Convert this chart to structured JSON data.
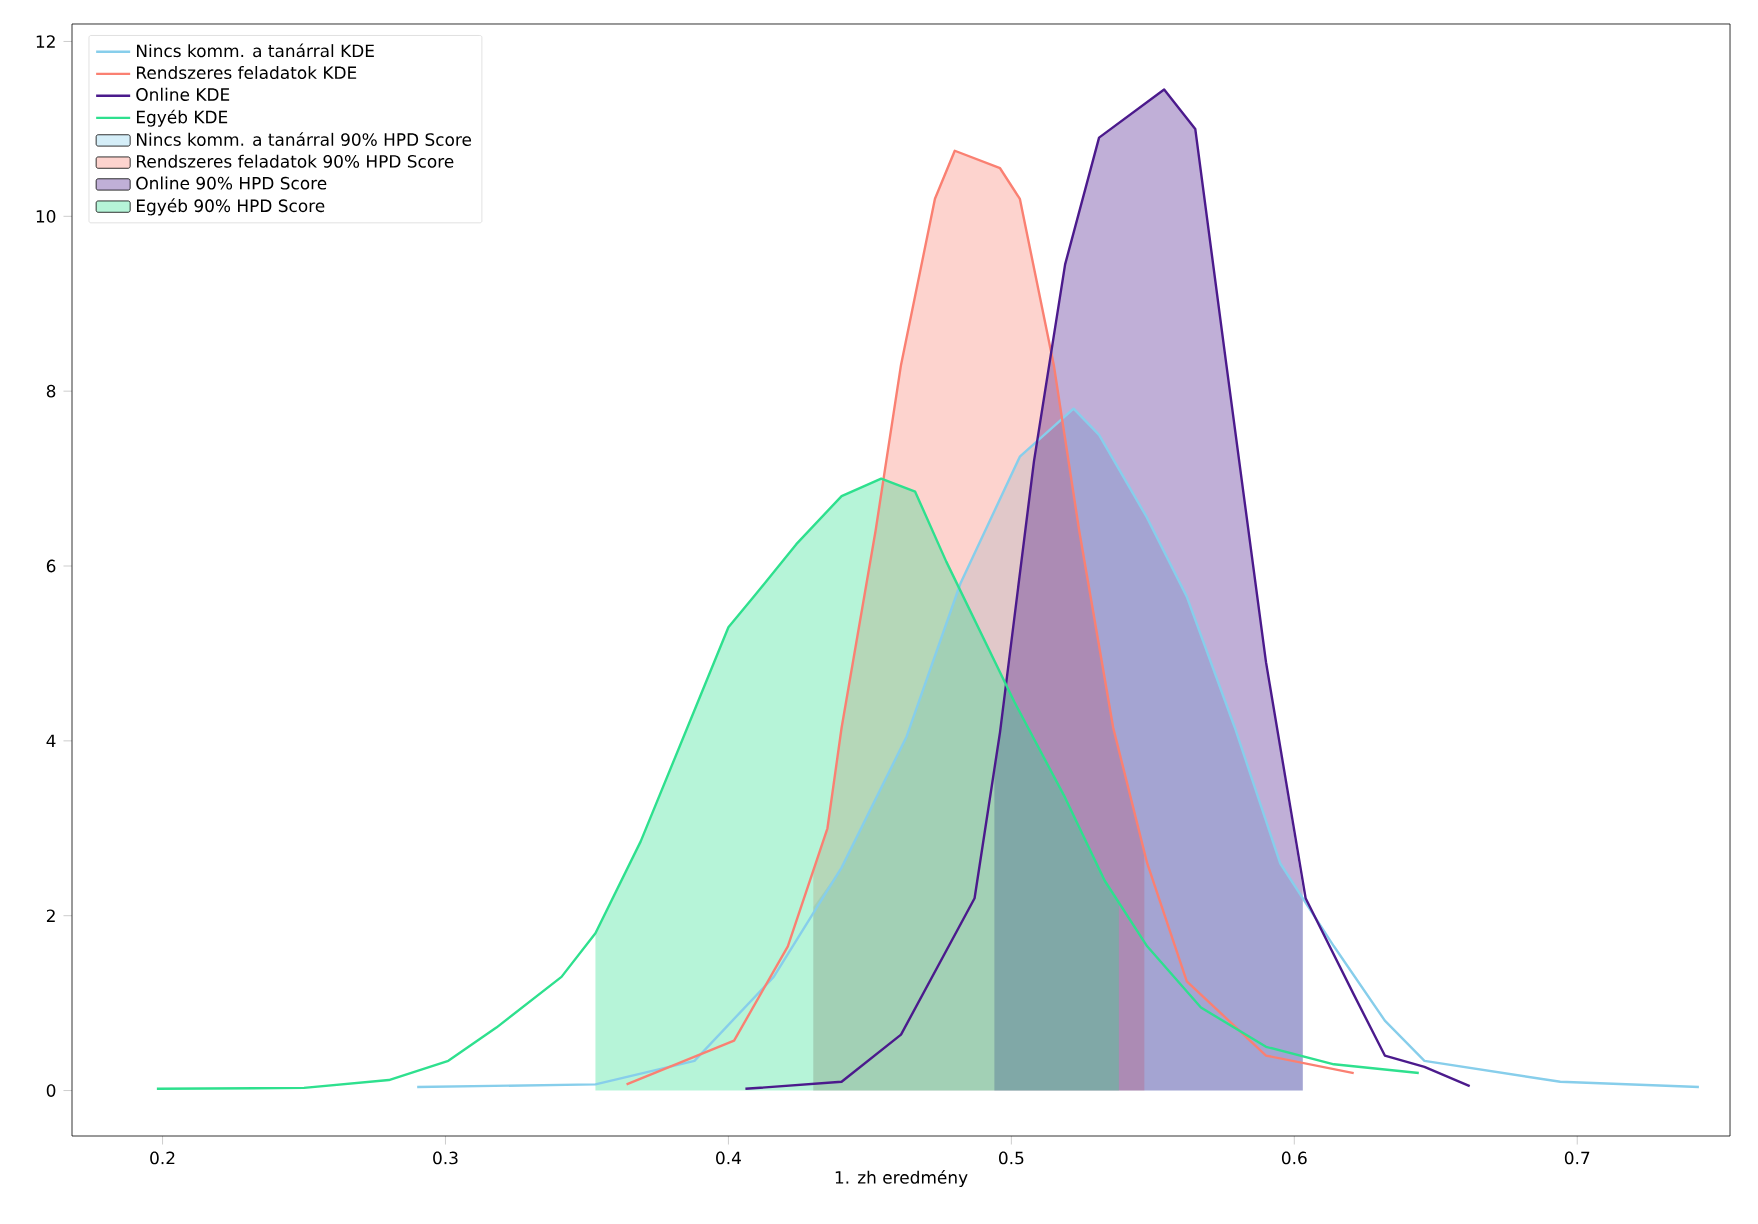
{
  "chart_data": {
    "type": "line",
    "xlabel": "1. zh eredmény",
    "xlim": [
      0.168,
      0.754
    ],
    "ylim": [
      -0.52,
      12.2
    ],
    "xticks": [
      0.2,
      0.3,
      0.4,
      0.5,
      0.6,
      0.7
    ],
    "yticks": [
      0,
      2,
      4,
      6,
      8,
      10,
      12
    ],
    "legend": "top left",
    "grid": false,
    "series": [
      {
        "name": "Nincs komm. a tanárral KDE",
        "color": "#87ceeb",
        "x": [
          0.29,
          0.353,
          0.388,
          0.416,
          0.44,
          0.463,
          0.482,
          0.503,
          0.522,
          0.531,
          0.548,
          0.562,
          0.579,
          0.595,
          0.614,
          0.632,
          0.646,
          0.694,
          0.743
        ],
        "values": [
          0.04,
          0.07,
          0.34,
          1.3,
          2.55,
          4.05,
          5.8,
          7.25,
          7.8,
          7.5,
          6.55,
          5.65,
          4.15,
          2.6,
          1.65,
          0.8,
          0.34,
          0.1,
          0.04
        ]
      },
      {
        "name": "Rendszeres feladatok KDE",
        "color": "#fa8072",
        "x": [
          0.364,
          0.402,
          0.421,
          0.435,
          0.44,
          0.452,
          0.461,
          0.473,
          0.48,
          0.496,
          0.503,
          0.515,
          0.524,
          0.536,
          0.548,
          0.562,
          0.59,
          0.621
        ],
        "values": [
          0.07,
          0.57,
          1.65,
          3.0,
          4.15,
          6.4,
          8.3,
          10.2,
          10.75,
          10.55,
          10.2,
          8.3,
          6.4,
          4.15,
          2.6,
          1.25,
          0.4,
          0.2
        ]
      },
      {
        "name": "Online KDE",
        "color": "#4b1a8c",
        "x": [
          0.406,
          0.44,
          0.461,
          0.487,
          0.496,
          0.508,
          0.519,
          0.531,
          0.554,
          0.565,
          0.576,
          0.59,
          0.604,
          0.621,
          0.632,
          0.646,
          0.662
        ],
        "values": [
          0.02,
          0.1,
          0.64,
          2.2,
          4.1,
          7.2,
          9.45,
          10.9,
          11.45,
          11.0,
          8.3,
          4.9,
          2.2,
          1.1,
          0.4,
          0.27,
          0.05
        ]
      },
      {
        "name": "Egyéb KDE",
        "color": "#2ee08e",
        "x": [
          0.198,
          0.25,
          0.28,
          0.301,
          0.318,
          0.341,
          0.353,
          0.369,
          0.388,
          0.4,
          0.409,
          0.424,
          0.44,
          0.454,
          0.466,
          0.477,
          0.501,
          0.519,
          0.533,
          0.548,
          0.567,
          0.59,
          0.614,
          0.644
        ],
        "values": [
          0.02,
          0.03,
          0.12,
          0.34,
          0.72,
          1.3,
          1.8,
          2.85,
          4.35,
          5.3,
          5.65,
          6.25,
          6.8,
          7.0,
          6.85,
          6.05,
          4.45,
          3.35,
          2.4,
          1.65,
          0.95,
          0.5,
          0.3,
          0.2
        ]
      },
      {
        "name": "Nincs komm. a tanárral 90% HPD Score",
        "type": "area",
        "color": "#87ceeb",
        "x": [
          0.43,
          0.44,
          0.463,
          0.482,
          0.503,
          0.522,
          0.531,
          0.548,
          0.562,
          0.579,
          0.595,
          0.603
        ],
        "values": [
          2.1,
          2.55,
          4.05,
          5.8,
          7.25,
          7.8,
          7.5,
          6.55,
          5.65,
          4.15,
          2.6,
          2.2
        ]
      },
      {
        "name": "Rendszeres feladatok 90% HPD Score",
        "type": "area",
        "color": "#fa8072",
        "x": [
          0.43,
          0.435,
          0.44,
          0.452,
          0.461,
          0.473,
          0.48,
          0.496,
          0.503,
          0.515,
          0.524,
          0.536,
          0.547
        ],
        "values": [
          2.5,
          3.0,
          4.15,
          6.4,
          8.3,
          10.2,
          10.75,
          10.55,
          10.2,
          8.3,
          6.4,
          4.15,
          2.7
        ]
      },
      {
        "name": "Online 90% HPD Score",
        "type": "area",
        "color": "#4b1a8c",
        "x": [
          0.494,
          0.496,
          0.508,
          0.519,
          0.531,
          0.554,
          0.565,
          0.576,
          0.59,
          0.603
        ],
        "values": [
          3.6,
          4.1,
          7.2,
          9.45,
          10.9,
          11.45,
          11.0,
          8.3,
          4.9,
          2.3
        ]
      },
      {
        "name": "Egyéb 90% HPD Score",
        "type": "area",
        "color": "#2ee08e",
        "x": [
          0.353,
          0.369,
          0.388,
          0.4,
          0.409,
          0.424,
          0.44,
          0.454,
          0.466,
          0.477,
          0.501,
          0.519,
          0.533,
          0.538
        ],
        "values": [
          1.8,
          2.85,
          4.35,
          5.3,
          5.65,
          6.25,
          6.8,
          7.0,
          6.85,
          6.05,
          4.45,
          3.35,
          2.4,
          2.15
        ]
      }
    ]
  }
}
